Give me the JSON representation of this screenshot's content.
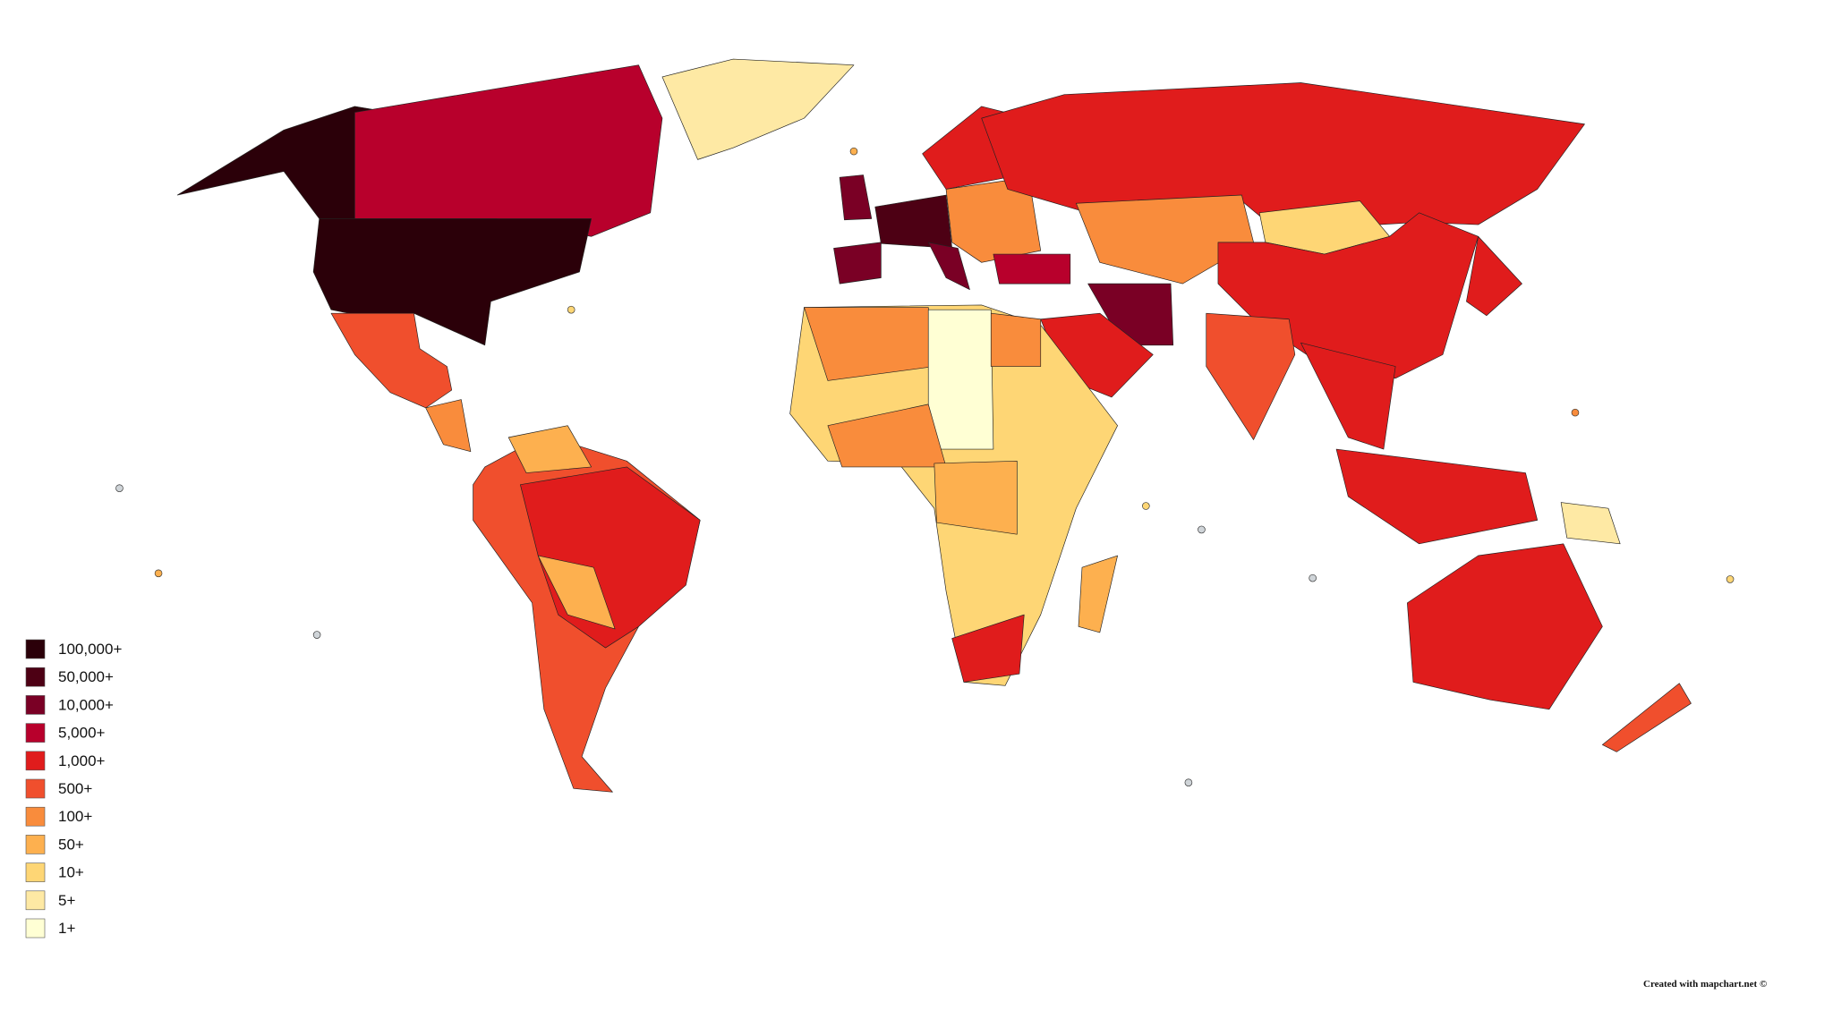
{
  "legend": {
    "items": [
      {
        "label": "100,000+",
        "color": "#2b0009"
      },
      {
        "label": "50,000+",
        "color": "#4d0014"
      },
      {
        "label": "10,000+",
        "color": "#7a0025"
      },
      {
        "label": "5,000+",
        "color": "#b8002c"
      },
      {
        "label": "1,000+",
        "color": "#e01c1c"
      },
      {
        "label": "500+",
        "color": "#f04f2d"
      },
      {
        "label": "100+",
        "color": "#f98c3c"
      },
      {
        "label": "50+",
        "color": "#fdb04f"
      },
      {
        "label": "10+",
        "color": "#fed675"
      },
      {
        "label": "5+",
        "color": "#fee9a4"
      },
      {
        "label": "1+",
        "color": "#ffffd4"
      }
    ]
  },
  "credit": "Created with mapchart.net ©"
}
